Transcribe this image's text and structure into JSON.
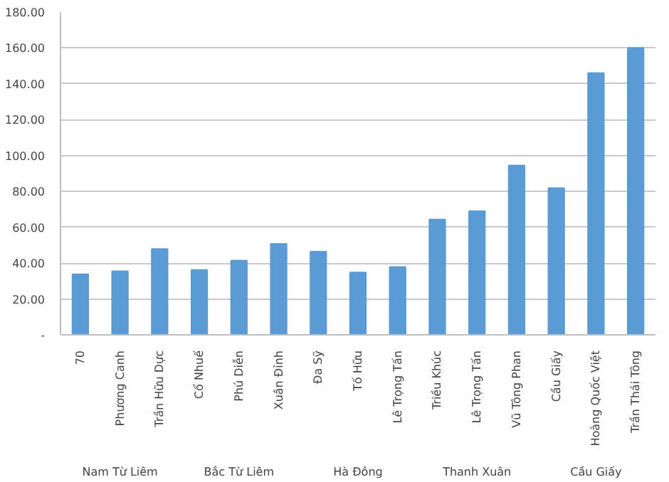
{
  "chart_data": {
    "type": "bar",
    "categories": [
      "70",
      "Phương Canh",
      "Trần Hữu Dực",
      "Cổ Nhuế",
      "Phú Diễn",
      "Xuân Đỉnh",
      "Đa Sỹ",
      "Tố Hữu",
      "Lê Trọng Tấn",
      "Triều Khúc",
      "Lê Trọng Tấn",
      "Vũ Tông Phan",
      "Cầu Giấy",
      "Hoàng Quốc Việt",
      "Trần Thái Tông"
    ],
    "values": [
      33.8,
      35.5,
      47.9,
      36.2,
      41.4,
      50.7,
      46.4,
      34.8,
      37.9,
      64.3,
      69.0,
      94.5,
      81.9,
      146.0,
      160.0
    ],
    "color": "#5b9bd5",
    "annotations": [
      "Nam Từ Liêm",
      "Bắc Từ Liêm",
      "Hà Đông",
      "Thanh Xuân",
      "Cầu Giấy"
    ],
    "ylim": [
      0,
      180
    ],
    "yticks": [
      {
        "value": 0,
        "label": "-"
      },
      {
        "value": 20,
        "label": "20.00"
      },
      {
        "value": 40,
        "label": "40.00"
      },
      {
        "value": 60,
        "label": "60.00"
      },
      {
        "value": 80,
        "label": "80.00"
      },
      {
        "value": 100,
        "label": "100.00"
      },
      {
        "value": 120,
        "label": "120.00"
      },
      {
        "value": 140,
        "label": "140.00"
      },
      {
        "value": 160,
        "label": "160.00"
      },
      {
        "value": 180,
        "label": "180.00"
      }
    ],
    "grid": "y"
  }
}
